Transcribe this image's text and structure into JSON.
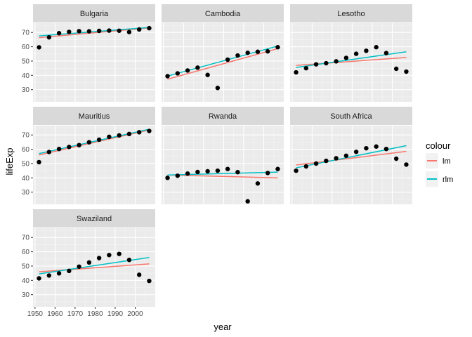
{
  "chart_data": {
    "type": "scatter",
    "title": "",
    "xlabel": "year",
    "ylabel": "lifeExp",
    "xlim": [
      1949,
      2010
    ],
    "ylim": [
      21.5,
      76.5
    ],
    "x_ticks": [
      1950,
      1960,
      1970,
      1980,
      1990,
      2000
    ],
    "y_ticks": [
      30,
      40,
      50,
      60,
      70
    ],
    "grid": true,
    "legend": {
      "title": "colour",
      "placement": "right",
      "entries": [
        {
          "label": "lm",
          "color": "#F8766D"
        },
        {
          "label": "rlm",
          "color": "#00BFC4"
        }
      ]
    },
    "years": [
      1952,
      1957,
      1962,
      1967,
      1972,
      1977,
      1982,
      1987,
      1992,
      1997,
      2002,
      2007
    ],
    "panels": [
      {
        "country": "Bulgaria",
        "lifeExp": [
          59.6,
          66.6,
          69.5,
          70.4,
          70.9,
          70.8,
          71.1,
          71.3,
          71.2,
          70.3,
          72.1,
          73.0
        ],
        "lm": [
          66.4,
          73.2
        ],
        "rlm": [
          67.6,
          73.5
        ]
      },
      {
        "country": "Cambodia",
        "lifeExp": [
          39.4,
          41.4,
          43.4,
          45.4,
          40.3,
          31.2,
          51.0,
          53.9,
          55.8,
          56.5,
          56.8,
          59.7
        ],
        "lm": [
          37.3,
          58.7
        ],
        "rlm": [
          39.5,
          60.5
        ]
      },
      {
        "country": "Lesotho",
        "lifeExp": [
          42.1,
          45.0,
          47.7,
          48.5,
          49.8,
          52.2,
          55.1,
          57.2,
          59.7,
          55.6,
          44.6,
          42.6
        ],
        "lm": [
          47.0,
          52.5
        ],
        "rlm": [
          45.5,
          56.5
        ]
      },
      {
        "country": "Mauritius",
        "lifeExp": [
          51.0,
          58.1,
          60.2,
          61.6,
          62.9,
          64.9,
          66.7,
          68.7,
          69.7,
          70.7,
          71.9,
          72.8
        ],
        "lm": [
          56.0,
          73.5
        ],
        "rlm": [
          57.0,
          74.0
        ]
      },
      {
        "country": "Rwanda",
        "lifeExp": [
          40.0,
          41.5,
          43.0,
          44.1,
          44.6,
          45.0,
          46.2,
          44.0,
          23.6,
          36.1,
          43.4,
          46.2
        ],
        "lm": [
          42.0,
          40.0
        ],
        "rlm": [
          42.0,
          44.0
        ]
      },
      {
        "country": "South Africa",
        "lifeExp": [
          45.0,
          48.0,
          50.0,
          51.9,
          53.7,
          55.5,
          58.2,
          60.7,
          61.9,
          60.2,
          53.4,
          49.3
        ],
        "lm": [
          49.0,
          58.5
        ],
        "rlm": [
          47.0,
          62.5
        ]
      },
      {
        "country": "Swaziland",
        "lifeExp": [
          41.4,
          43.4,
          44.9,
          46.6,
          49.6,
          52.5,
          55.6,
          57.7,
          58.5,
          54.3,
          43.9,
          39.6
        ],
        "lm": [
          46.0,
          51.5
        ],
        "rlm": [
          44.5,
          56.0
        ]
      }
    ]
  }
}
